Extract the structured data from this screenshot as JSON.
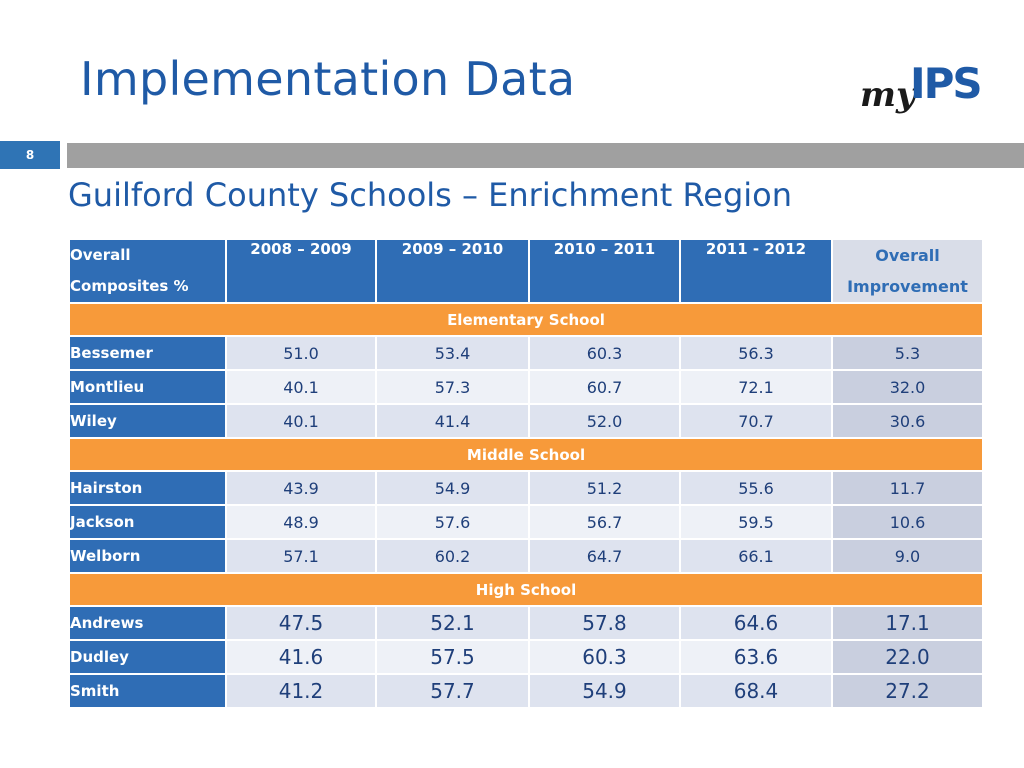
{
  "slide": {
    "title": "Implementation Data",
    "number": "8",
    "subtitle": "Guilford County Schools – Enrichment Region"
  },
  "logo": {
    "prefix": "my",
    "suffix": "IPS"
  },
  "table": {
    "headers": {
      "first_line1": "Overall",
      "first_line2": "Composites %",
      "years": [
        "2008 – 2009",
        "2009 – 2010",
        "2010 – 2011",
        "2011 - 2012"
      ],
      "last_line1": "Overall",
      "last_line2": "Improvement"
    },
    "sections": [
      {
        "label": "Elementary School",
        "rows": [
          {
            "school": "Bessemer",
            "values": [
              "51.0",
              "53.4",
              "60.3",
              "56.3"
            ],
            "improvement": "5.3"
          },
          {
            "school": "Montlieu",
            "values": [
              "40.1",
              "57.3",
              "60.7",
              "72.1"
            ],
            "improvement": "32.0"
          },
          {
            "school": "Wiley",
            "values": [
              "40.1",
              "41.4",
              "52.0",
              "70.7"
            ],
            "improvement": "30.6"
          }
        ]
      },
      {
        "label": "Middle School",
        "rows": [
          {
            "school": "Hairston",
            "values": [
              "43.9",
              "54.9",
              "51.2",
              "55.6"
            ],
            "improvement": "11.7"
          },
          {
            "school": "Jackson",
            "values": [
              "48.9",
              "57.6",
              "56.7",
              "59.5"
            ],
            "improvement": "10.6"
          },
          {
            "school": "Welborn",
            "values": [
              "57.1",
              "60.2",
              "64.7",
              "66.1"
            ],
            "improvement": "9.0"
          }
        ]
      },
      {
        "label": "High School",
        "rows": [
          {
            "school": "Andrews",
            "values": [
              "47.5",
              "52.1",
              "57.8",
              "64.6"
            ],
            "improvement": "17.1"
          },
          {
            "school": "Dudley",
            "values": [
              "41.6",
              "57.5",
              "60.3",
              "63.6"
            ],
            "improvement": "22.0"
          },
          {
            "school": "Smith",
            "values": [
              "41.2",
              "57.7",
              "54.9",
              "68.4"
            ],
            "improvement": "27.2"
          }
        ]
      }
    ]
  }
}
